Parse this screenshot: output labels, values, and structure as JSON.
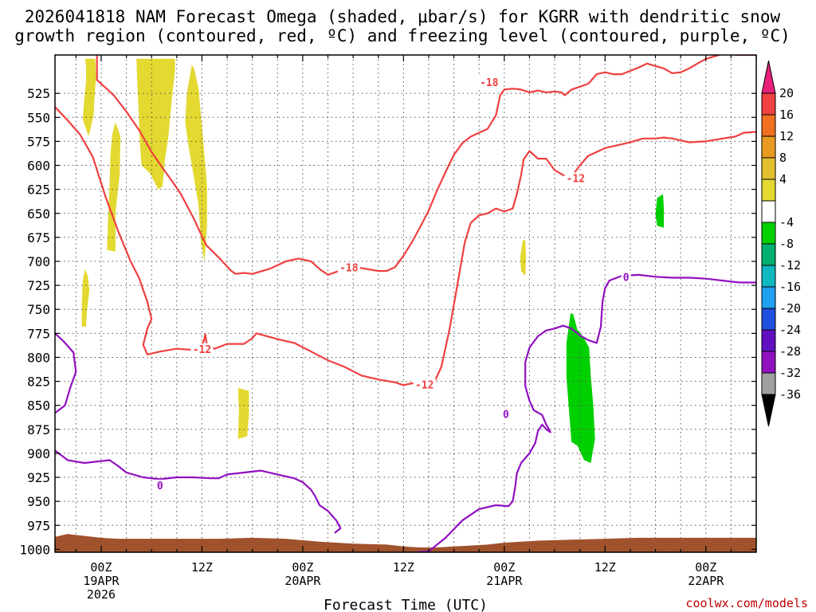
{
  "chart_data": {
    "type": "contour",
    "title_line1": "2026041818 NAM Forecast Omega (shaded, μbar/s) for KGRR with dendritic snow",
    "title_line2": "growth region (contoured, red, ºC) and freezing level (contoured, purple, ºC)",
    "xlabel": "Forecast Time (UTC)",
    "credit": "coolwx.com/models",
    "x_range_hours": [
      -5.5,
      78
    ],
    "y_range_hpa": [
      485,
      1003
    ],
    "y_ticks": [
      525,
      550,
      575,
      600,
      625,
      650,
      675,
      700,
      725,
      750,
      775,
      800,
      825,
      850,
      875,
      900,
      925,
      950,
      975,
      1000
    ],
    "x_ticks": [
      {
        "h": 0,
        "label": "00Z",
        "sub": "19APR",
        "sub2": "2026"
      },
      {
        "h": 12,
        "label": "12Z",
        "sub": "",
        "sub2": ""
      },
      {
        "h": 24,
        "label": "00Z",
        "sub": "20APR",
        "sub2": ""
      },
      {
        "h": 36,
        "label": "12Z",
        "sub": "",
        "sub2": ""
      },
      {
        "h": 48,
        "label": "00Z",
        "sub": "21APR",
        "sub2": ""
      },
      {
        "h": 60,
        "label": "12Z",
        "sub": "",
        "sub2": ""
      },
      {
        "h": 72,
        "label": "00Z",
        "sub": "22APR",
        "sub2": ""
      }
    ],
    "colorbar": {
      "labels": [
        "20",
        "16",
        "12",
        "8",
        "4",
        "-4",
        "-8",
        "-12",
        "-16",
        "-20",
        "-24",
        "-28",
        "-32",
        "-36"
      ],
      "colors": [
        "#e8207a",
        "#f04040",
        "#f07020",
        "#e89b20",
        "#e3bf30",
        "#e3d930",
        "#ffffff",
        "#00d000",
        "#00b070",
        "#10b8c0",
        "#20a0f0",
        "#2050e0",
        "#6010c0",
        "#9010c0",
        "#a0a0a0",
        "#000000"
      ]
    },
    "colors": {
      "dgz": "#f04040",
      "freezing": "#9010c0",
      "omega_pos": "#e3d930",
      "omega_neg": "#00d000",
      "ground": "#a0522d"
    },
    "contour_labels": [
      {
        "text": "-18",
        "h": 46.2,
        "p": 514,
        "series": "dgz"
      },
      {
        "text": "-18",
        "h": 29.5,
        "p": 707,
        "series": "dgz"
      },
      {
        "text": "-12",
        "h": 12,
        "p": 792,
        "series": "dgz"
      },
      {
        "text": "-12",
        "h": 38.5,
        "p": 829,
        "series": "dgz"
      },
      {
        "text": "-12",
        "h": 56.5,
        "p": 614,
        "series": "dgz"
      },
      {
        "text": "0",
        "h": 62.5,
        "p": 717,
        "series": "freezing"
      },
      {
        "text": "0",
        "h": 7,
        "p": 934,
        "series": "freezing"
      },
      {
        "text": "0",
        "h": 48.2,
        "p": 860,
        "series": "freezing"
      }
    ],
    "dgz_lines": [
      [
        [
          -5.5,
          539
        ],
        [
          -4,
          553
        ],
        [
          -2.5,
          568
        ],
        [
          -1,
          591
        ],
        [
          0.5,
          632
        ],
        [
          2,
          668
        ],
        [
          3.5,
          700
        ],
        [
          4.5,
          717
        ],
        [
          5.5,
          742
        ],
        [
          6,
          760
        ],
        [
          5.5,
          770
        ],
        [
          5,
          787
        ],
        [
          5.5,
          797
        ],
        [
          7,
          794
        ],
        [
          9,
          791
        ],
        [
          10.5,
          792
        ],
        [
          11.5,
          790
        ],
        [
          12.2,
          784
        ],
        [
          12.4,
          776
        ],
        [
          12.6,
          788
        ],
        [
          13.5,
          791
        ],
        [
          15,
          786
        ],
        [
          17,
          786
        ],
        [
          18,
          780
        ],
        [
          18.5,
          775
        ],
        [
          21,
          781
        ],
        [
          23,
          785
        ],
        [
          25,
          794
        ],
        [
          27,
          803
        ],
        [
          29,
          810
        ],
        [
          31,
          819
        ],
        [
          33,
          823
        ],
        [
          35,
          826
        ],
        [
          36,
          829
        ],
        [
          37,
          827
        ],
        [
          38.5,
          829
        ],
        [
          39.5,
          829
        ],
        [
          40.5,
          810
        ],
        [
          41.5,
          770
        ],
        [
          42.5,
          720
        ],
        [
          43.3,
          680
        ],
        [
          44,
          660
        ],
        [
          45,
          652
        ],
        [
          46,
          650
        ],
        [
          47,
          645
        ],
        [
          48,
          648
        ],
        [
          49,
          645
        ],
        [
          49.5,
          630
        ],
        [
          50,
          610
        ],
        [
          50.3,
          594
        ],
        [
          51,
          585
        ],
        [
          52,
          593
        ],
        [
          53,
          593
        ],
        [
          54,
          605
        ],
        [
          55,
          610
        ],
        [
          56,
          612
        ],
        [
          57,
          600
        ],
        [
          58,
          590
        ],
        [
          59,
          586
        ],
        [
          60,
          582
        ],
        [
          61,
          580
        ],
        [
          63,
          576
        ],
        [
          64.5,
          572
        ],
        [
          66,
          572
        ],
        [
          67,
          571
        ],
        [
          68,
          572
        ],
        [
          69,
          574
        ],
        [
          70,
          576
        ],
        [
          72,
          575
        ],
        [
          74,
          572
        ],
        [
          75.5,
          570
        ],
        [
          76.5,
          566
        ],
        [
          78,
          565
        ]
      ],
      [
        [
          -0.5,
          485
        ],
        [
          -0.5,
          511
        ],
        [
          1.5,
          527
        ],
        [
          3,
          544
        ],
        [
          4.5,
          563
        ],
        [
          6,
          586
        ],
        [
          7.5,
          605
        ],
        [
          8.5,
          617
        ],
        [
          9.5,
          630
        ],
        [
          11,
          655
        ],
        [
          12.5,
          683
        ],
        [
          14,
          696
        ],
        [
          15.5,
          710
        ],
        [
          16,
          713
        ],
        [
          17,
          712
        ],
        [
          18,
          713
        ],
        [
          20,
          708
        ],
        [
          22,
          700
        ],
        [
          23.5,
          697
        ],
        [
          25,
          700
        ],
        [
          26,
          708
        ],
        [
          27,
          714
        ],
        [
          28,
          711
        ],
        [
          29.5,
          706
        ],
        [
          31,
          707
        ],
        [
          33,
          710
        ],
        [
          34,
          710
        ],
        [
          35,
          706
        ],
        [
          36,
          694
        ],
        [
          37,
          680
        ],
        [
          38,
          664
        ],
        [
          39,
          647
        ],
        [
          40,
          626
        ],
        [
          41,
          607
        ],
        [
          42,
          589
        ],
        [
          43,
          577
        ],
        [
          44,
          570
        ],
        [
          45,
          566
        ],
        [
          46,
          562
        ],
        [
          47,
          548
        ],
        [
          47.5,
          527
        ],
        [
          48,
          521
        ],
        [
          49,
          520
        ],
        [
          50,
          521
        ],
        [
          51,
          524
        ],
        [
          52,
          522
        ],
        [
          53,
          524
        ],
        [
          54,
          523
        ],
        [
          54.8,
          524
        ],
        [
          55.2,
          527
        ],
        [
          56,
          521
        ],
        [
          57,
          518
        ],
        [
          58,
          515
        ],
        [
          59,
          505
        ],
        [
          60,
          503
        ],
        [
          61,
          505
        ],
        [
          62,
          505
        ],
        [
          64,
          498
        ],
        [
          65,
          494
        ],
        [
          67,
          499
        ],
        [
          68,
          504
        ],
        [
          69,
          503
        ],
        [
          70,
          499
        ],
        [
          71,
          494
        ],
        [
          72,
          489
        ],
        [
          74,
          484
        ],
        [
          76,
          485
        ],
        [
          78,
          485
        ]
      ]
    ],
    "freezing_lines": [
      [
        [
          -5.5,
          775
        ],
        [
          -4.5,
          783
        ],
        [
          -3.3,
          795
        ],
        [
          -3,
          815
        ],
        [
          -3.7,
          832
        ],
        [
          -4.3,
          850
        ],
        [
          -5.5,
          858
        ]
      ],
      [
        [
          -5.5,
          897
        ],
        [
          -4,
          907
        ],
        [
          -2,
          910
        ],
        [
          0,
          908
        ],
        [
          1,
          907
        ],
        [
          2,
          913
        ],
        [
          3,
          920
        ],
        [
          5,
          925
        ],
        [
          7,
          927
        ],
        [
          9,
          925
        ],
        [
          11,
          925
        ],
        [
          13,
          926
        ],
        [
          14,
          926
        ],
        [
          15,
          922
        ],
        [
          17,
          920
        ],
        [
          19,
          918
        ],
        [
          21,
          922
        ],
        [
          23,
          926
        ],
        [
          24,
          930
        ],
        [
          25,
          938
        ],
        [
          25.5,
          945
        ],
        [
          26,
          954
        ],
        [
          27,
          960
        ],
        [
          28,
          970
        ],
        [
          28.5,
          978
        ],
        [
          27.8,
          983
        ]
      ],
      [
        [
          37.5,
          1003
        ],
        [
          39,
          1002
        ],
        [
          41,
          988
        ],
        [
          43,
          970
        ],
        [
          45,
          958
        ],
        [
          47,
          954
        ],
        [
          48.5,
          955
        ],
        [
          49,
          950
        ],
        [
          49.3,
          935
        ],
        [
          49.5,
          921
        ],
        [
          50,
          910
        ],
        [
          51,
          900
        ],
        [
          51.7,
          889
        ],
        [
          52,
          877
        ],
        [
          52.5,
          870
        ],
        [
          53,
          875
        ],
        [
          53.5,
          878
        ],
        [
          53,
          870
        ],
        [
          52.5,
          860
        ],
        [
          51.5,
          855
        ],
        [
          51,
          845
        ],
        [
          50.5,
          830
        ],
        [
          50.5,
          805
        ],
        [
          51,
          790
        ],
        [
          52,
          778
        ],
        [
          53,
          772
        ],
        [
          54,
          770
        ],
        [
          55,
          767
        ],
        [
          56,
          770
        ],
        [
          57,
          777
        ],
        [
          58,
          782
        ],
        [
          59,
          785
        ],
        [
          59.5,
          768
        ],
        [
          59.7,
          742
        ],
        [
          60,
          728
        ],
        [
          60.5,
          720
        ],
        [
          62,
          715
        ],
        [
          64,
          714
        ],
        [
          66,
          716
        ],
        [
          68,
          717
        ],
        [
          70,
          717
        ],
        [
          72,
          718
        ],
        [
          74,
          720
        ],
        [
          76,
          722
        ],
        [
          78,
          722
        ]
      ]
    ],
    "omega_positive_patches": [
      [
        [
          -1.9,
          489
        ],
        [
          -1.8,
          497
        ],
        [
          -1.8,
          512
        ],
        [
          -2,
          530
        ],
        [
          -2.2,
          552
        ],
        [
          -1.5,
          570
        ],
        [
          -0.9,
          548
        ],
        [
          -0.8,
          530
        ],
        [
          -0.6,
          508
        ],
        [
          -0.7,
          489
        ]
      ],
      [
        [
          1.7,
          555
        ],
        [
          1.3,
          568
        ],
        [
          1.1,
          590
        ],
        [
          1,
          620
        ],
        [
          0.8,
          660
        ],
        [
          0.7,
          688
        ],
        [
          1.7,
          690
        ],
        [
          1.7,
          650
        ],
        [
          2.2,
          610
        ],
        [
          2.3,
          570
        ]
      ],
      [
        [
          4.2,
          489
        ],
        [
          4.3,
          515
        ],
        [
          4.5,
          550
        ],
        [
          4.6,
          575
        ],
        [
          4.8,
          600
        ],
        [
          5.8,
          608
        ],
        [
          6.8,
          625
        ],
        [
          7.3,
          622
        ],
        [
          7.6,
          593
        ],
        [
          8,
          570
        ],
        [
          8.4,
          532
        ],
        [
          8.8,
          500
        ],
        [
          8.8,
          489
        ]
      ],
      [
        [
          10.8,
          495
        ],
        [
          10.2,
          525
        ],
        [
          10,
          555
        ],
        [
          10.4,
          580
        ],
        [
          11.1,
          615
        ],
        [
          11.6,
          642
        ],
        [
          11.9,
          682
        ],
        [
          12.3,
          700
        ],
        [
          12.6,
          663
        ],
        [
          12.6,
          621
        ],
        [
          12.3,
          590
        ],
        [
          12,
          560
        ],
        [
          11.6,
          520
        ],
        [
          11.1,
          500
        ]
      ],
      [
        [
          -1.9,
          708
        ],
        [
          -2.2,
          720
        ],
        [
          -2.3,
          743
        ],
        [
          -2.3,
          768
        ],
        [
          -1.8,
          768
        ],
        [
          -1.7,
          752
        ],
        [
          -1.4,
          730
        ],
        [
          -1.6,
          715
        ]
      ],
      [
        [
          16.3,
          832
        ],
        [
          16.4,
          855
        ],
        [
          16.3,
          885
        ],
        [
          17.4,
          882
        ],
        [
          17.6,
          860
        ],
        [
          17.6,
          835
        ]
      ],
      [
        [
          50.2,
          678
        ],
        [
          49.9,
          695
        ],
        [
          50,
          710
        ],
        [
          50.5,
          715
        ],
        [
          50.6,
          695
        ],
        [
          50.5,
          678
        ]
      ]
    ],
    "omega_negative_patches": [
      [
        [
          55.9,
          754
        ],
        [
          55.4,
          785
        ],
        [
          55.4,
          820
        ],
        [
          55.7,
          855
        ],
        [
          56,
          888
        ],
        [
          56.7,
          892
        ],
        [
          57.5,
          907
        ],
        [
          58.3,
          910
        ],
        [
          58.8,
          885
        ],
        [
          58.6,
          850
        ],
        [
          58.3,
          820
        ],
        [
          58.1,
          790
        ],
        [
          57.5,
          780
        ],
        [
          56.7,
          771
        ],
        [
          56.2,
          755
        ]
      ],
      [
        [
          66.2,
          634
        ],
        [
          66,
          651
        ],
        [
          66.2,
          663
        ],
        [
          67,
          665
        ],
        [
          67,
          645
        ],
        [
          66.9,
          630
        ]
      ]
    ],
    "ground_profile": [
      [
        -5.5,
        987
      ],
      [
        -4,
        984
      ],
      [
        -2,
        986
      ],
      [
        0,
        988
      ],
      [
        2,
        989
      ],
      [
        6,
        989
      ],
      [
        10,
        989
      ],
      [
        14,
        989
      ],
      [
        18,
        988
      ],
      [
        22,
        989
      ],
      [
        26,
        992
      ],
      [
        30,
        994
      ],
      [
        34,
        995
      ],
      [
        36,
        997
      ],
      [
        38,
        998
      ],
      [
        40,
        998
      ],
      [
        42,
        997
      ],
      [
        44,
        996
      ],
      [
        46,
        995
      ],
      [
        48,
        993
      ],
      [
        52,
        991
      ],
      [
        56,
        990
      ],
      [
        60,
        989
      ],
      [
        64,
        988
      ],
      [
        68,
        988
      ],
      [
        72,
        988
      ],
      [
        76,
        988
      ],
      [
        78,
        988
      ]
    ]
  }
}
